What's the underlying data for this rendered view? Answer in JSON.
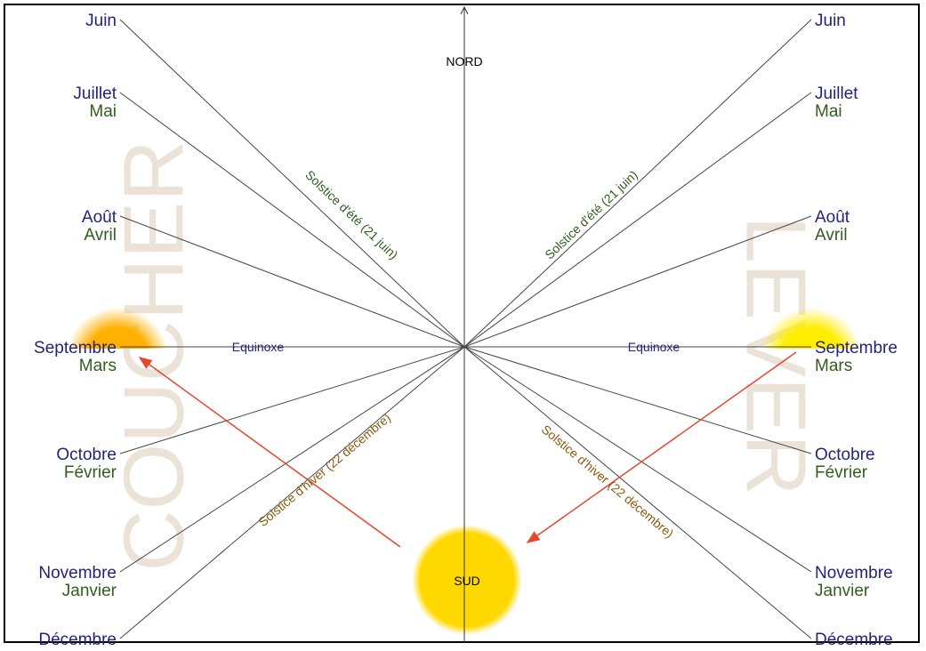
{
  "north": "NORD",
  "south": "SUD",
  "watermarks": {
    "left": "COUCHER",
    "right": "LEVER"
  },
  "left": {
    "months": [
      [
        "Juin"
      ],
      [
        "Juillet",
        "Mai"
      ],
      [
        "Août",
        "Avril"
      ],
      [
        "Septembre",
        "Mars"
      ],
      [
        "Octobre",
        "Février"
      ],
      [
        "Novembre",
        "Janvier"
      ],
      [
        "Décembre"
      ]
    ],
    "equinox": "Equinoxe",
    "summer_solstice": "Solstice d'été (21 juin)",
    "winter_solstice": "Solstice d'hiver (22 décembre)"
  },
  "right": {
    "months": [
      [
        "Juin"
      ],
      [
        "Juillet",
        "Mai"
      ],
      [
        "Août",
        "Avril"
      ],
      [
        "Septembre",
        "Mars"
      ],
      [
        "Octobre",
        "Février"
      ],
      [
        "Novembre",
        "Janvier"
      ],
      [
        "Décembre"
      ]
    ],
    "equinox": "Equinoxe",
    "summer_solstice": "Solstice d'été (21 juin)",
    "winter_solstice": "Solstice d'hiver (22 décembre)"
  }
}
